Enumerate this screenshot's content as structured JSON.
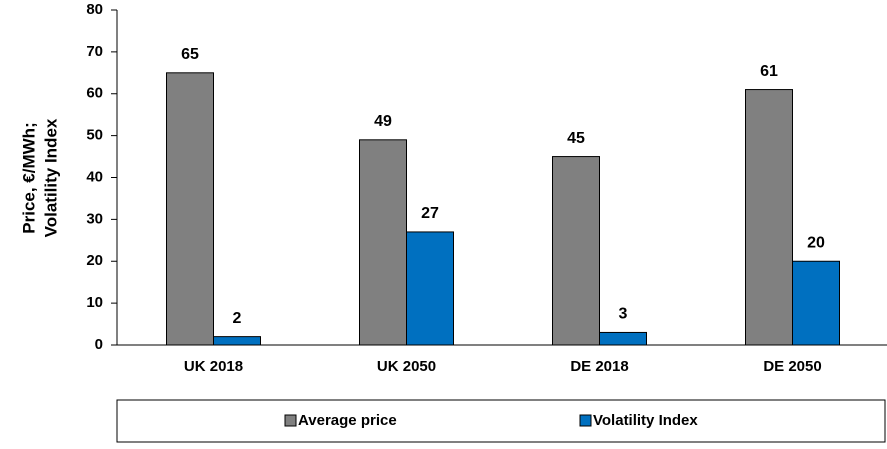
{
  "chart_data": {
    "type": "bar",
    "ylabel": [
      "Price, €/MWh;",
      "Volatility Index"
    ],
    "categories": [
      "UK 2018",
      "UK 2050",
      "DE 2018",
      "DE 2050"
    ],
    "series": [
      {
        "name": "Average price",
        "color": "#808080",
        "values": [
          65,
          49,
          45,
          61
        ]
      },
      {
        "name": "Volatility Index",
        "color": "#0070c0",
        "values": [
          2,
          27,
          3,
          20
        ]
      }
    ],
    "ylim": [
      0,
      80
    ],
    "yticks": [
      0,
      10,
      20,
      30,
      40,
      50,
      60,
      70,
      80
    ],
    "legend": "bottom"
  }
}
